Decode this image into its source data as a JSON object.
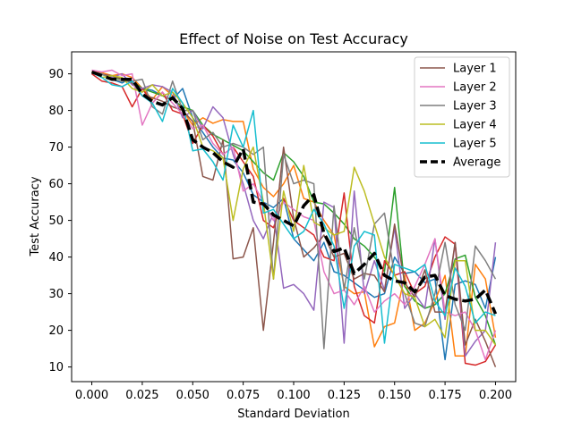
{
  "chart_data": {
    "type": "line",
    "title": "Effect of Noise on Test Accuracy",
    "xlabel": "Standard Deviation",
    "ylabel": "Test Accuracy",
    "xlim": [
      -0.01,
      0.21
    ],
    "ylim": [
      6,
      96
    ],
    "xticks": [
      "0.000",
      "0.025",
      "0.050",
      "0.075",
      "0.100",
      "0.125",
      "0.150",
      "0.175",
      "0.200"
    ],
    "xtick_values": [
      0,
      0.025,
      0.05,
      0.075,
      0.1,
      0.125,
      0.15,
      0.175,
      0.2
    ],
    "yticks": [
      "10",
      "20",
      "30",
      "40",
      "50",
      "60",
      "70",
      "80",
      "90"
    ],
    "ytick_values": [
      10,
      20,
      30,
      40,
      50,
      60,
      70,
      80,
      90
    ],
    "legend_position": "upper right",
    "grid": false,
    "x": [
      0,
      0.005,
      0.01,
      0.015,
      0.02,
      0.025,
      0.03,
      0.035,
      0.04,
      0.045,
      0.05,
      0.055,
      0.06,
      0.065,
      0.07,
      0.075,
      0.08,
      0.085,
      0.09,
      0.095,
      0.1,
      0.105,
      0.11,
      0.115,
      0.12,
      0.125,
      0.13,
      0.135,
      0.14,
      0.145,
      0.15,
      0.155,
      0.16,
      0.165,
      0.17,
      0.175,
      0.18,
      0.185,
      0.19,
      0.195,
      0.2
    ],
    "series": [
      {
        "name": "",
        "color": "#1f77b4",
        "dashed": false,
        "width": 1.5,
        "legend": false,
        "values": [
          90.5,
          90.2,
          88.5,
          87.5,
          89.0,
          86.0,
          85.5,
          84.0,
          83.0,
          86.0,
          78.0,
          74.0,
          70.0,
          67.0,
          66.5,
          63.0,
          57.0,
          55.0,
          53.5,
          56.0,
          45.0,
          42.0,
          39.0,
          44.0,
          36.0,
          35.0,
          33.0,
          31.0,
          29.0,
          30.0,
          40.0,
          35.5,
          36.0,
          33.0,
          34.0,
          12.0,
          32.5,
          33.5,
          32.5,
          26.0,
          40.0
        ]
      },
      {
        "name": "",
        "color": "#ff7f0e",
        "dashed": false,
        "width": 1.5,
        "legend": false,
        "values": [
          90.7,
          90.3,
          89.5,
          90.0,
          89.0,
          86.0,
          83.0,
          86.5,
          84.0,
          80.0,
          76.0,
          78.0,
          76.5,
          77.5,
          77.0,
          77.0,
          64.0,
          59.0,
          56.5,
          60.0,
          65.0,
          56.0,
          55.0,
          50.0,
          46.0,
          32.0,
          30.0,
          30.5,
          15.5,
          21.0,
          22.0,
          35.0,
          20.0,
          22.0,
          28.0,
          35.0,
          13.0,
          13.0,
          38.0,
          34.0,
          18.0
        ]
      },
      {
        "name": "",
        "color": "#2ca02c",
        "dashed": false,
        "width": 1.5,
        "legend": false,
        "values": [
          90.5,
          89.8,
          89.0,
          88.5,
          88.0,
          86.0,
          85.0,
          84.0,
          83.0,
          81.0,
          80.0,
          76.0,
          73.5,
          72.0,
          70.5,
          69.0,
          66.0,
          63.0,
          61.0,
          68.5,
          66.0,
          62.0,
          55.0,
          54.5,
          52.0,
          49.0,
          45.0,
          43.0,
          40.0,
          36.0,
          59.0,
          32.0,
          28.0,
          26.0,
          27.0,
          30.0,
          39.5,
          40.5,
          29.0,
          24.0,
          16.0
        ]
      },
      {
        "name": "",
        "color": "#d62728",
        "dashed": false,
        "width": 1.5,
        "legend": false,
        "values": [
          90.0,
          88.0,
          87.5,
          86.5,
          81.0,
          86.0,
          82.0,
          85.0,
          80.0,
          79.0,
          71.0,
          76.0,
          73.0,
          68.0,
          70.0,
          66.0,
          62.0,
          50.0,
          48.0,
          56.0,
          50.0,
          48.0,
          46.0,
          40.0,
          39.0,
          57.5,
          32.0,
          24.0,
          22.0,
          39.0,
          35.0,
          36.0,
          30.0,
          32.0,
          40.0,
          45.5,
          43.5,
          11.0,
          10.5,
          11.5,
          16.0
        ]
      },
      {
        "name": "",
        "color": "#9467bd",
        "dashed": false,
        "width": 1.5,
        "legend": false,
        "values": [
          90.5,
          90.0,
          89.0,
          90.0,
          87.0,
          86.0,
          87.0,
          86.5,
          85.0,
          78.0,
          80.0,
          75.0,
          81.0,
          78.0,
          68.0,
          60.0,
          50.0,
          45.0,
          52.0,
          31.5,
          32.5,
          30.0,
          25.5,
          55.0,
          53.5,
          16.5,
          58.0,
          30.0,
          39.0,
          31.0,
          48.0,
          26.0,
          30.0,
          26.0,
          45.0,
          23.0,
          44.0,
          13.0,
          17.0,
          20.0,
          44.0
        ]
      },
      {
        "name": "Layer 1",
        "color": "#8c564b",
        "dashed": false,
        "width": 1.5,
        "legend": true,
        "values": [
          90.3,
          89.8,
          89.5,
          88.5,
          87.5,
          84.0,
          83.5,
          82.5,
          81.0,
          80.0,
          77.0,
          62.0,
          61.0,
          72.0,
          39.5,
          40.0,
          48.0,
          20.0,
          44.0,
          70.0,
          50.5,
          40.0,
          42.5,
          46.0,
          40.0,
          41.0,
          34.0,
          35.5,
          35.0,
          30.5,
          49.0,
          33.0,
          29.0,
          36.5,
          25.0,
          25.0,
          44.0,
          16.0,
          23.0,
          17.0,
          10.0
        ]
      },
      {
        "name": "Layer 2",
        "color": "#e377c2",
        "dashed": false,
        "width": 1.5,
        "legend": true,
        "values": [
          91.0,
          90.5,
          91.0,
          89.5,
          90.0,
          76.0,
          82.0,
          85.0,
          82.0,
          79.0,
          75.0,
          76.0,
          71.0,
          68.0,
          70.0,
          58.0,
          60.0,
          55.0,
          50.0,
          55.0,
          53.0,
          51.0,
          50.0,
          36.0,
          30.0,
          31.0,
          27.0,
          32.0,
          25.0,
          28.0,
          30.0,
          27.0,
          32.0,
          38.0,
          45.0,
          25.0,
          24.0,
          25.0,
          20.0,
          12.0,
          20.0
        ]
      },
      {
        "name": "Layer 3",
        "color": "#7f7f7f",
        "dashed": false,
        "width": 1.5,
        "legend": true,
        "values": [
          90.4,
          90.0,
          88.5,
          88.0,
          88.0,
          88.5,
          81.0,
          79.0,
          88.0,
          80.0,
          80.0,
          72.0,
          74.0,
          70.0,
          71.0,
          70.0,
          68.0,
          70.0,
          34.0,
          68.0,
          60.0,
          61.0,
          60.0,
          15.0,
          54.0,
          31.0,
          48.0,
          34.0,
          49.0,
          52.0,
          35.0,
          30.0,
          22.0,
          21.0,
          30.0,
          44.0,
          27.0,
          20.0,
          43.0,
          39.0,
          34.0
        ]
      },
      {
        "name": "Layer 4",
        "color": "#bcbd22",
        "dashed": false,
        "width": 1.5,
        "legend": true,
        "values": [
          90.6,
          89.0,
          89.5,
          89.0,
          86.0,
          85.0,
          87.0,
          84.0,
          85.0,
          82.0,
          78.0,
          70.0,
          69.0,
          67.0,
          50.0,
          64.0,
          70.0,
          55.0,
          34.0,
          58.0,
          47.0,
          65.0,
          49.5,
          48.0,
          46.0,
          47.0,
          64.5,
          58.0,
          49.0,
          40.0,
          35.0,
          30.0,
          29.0,
          21.0,
          23.0,
          18.0,
          39.0,
          39.0,
          20.0,
          20.0,
          16.0
        ]
      },
      {
        "name": "Layer 5",
        "color": "#17becf",
        "dashed": false,
        "width": 1.5,
        "legend": true,
        "values": [
          90.3,
          89.0,
          87.0,
          86.5,
          88.0,
          84.0,
          82.0,
          77.0,
          86.0,
          82.0,
          69.0,
          69.5,
          66.0,
          61.0,
          76.0,
          70.0,
          80.0,
          52.0,
          53.0,
          49.0,
          45.0,
          47.0,
          53.0,
          49.0,
          43.0,
          26.0,
          43.0,
          47.0,
          46.0,
          16.5,
          38.0,
          37.0,
          36.0,
          38.0,
          28.0,
          24.0,
          37.0,
          32.0,
          22.0,
          25.0,
          24.0
        ]
      },
      {
        "name": "Average",
        "color": "#000000",
        "dashed": true,
        "width": 3.5,
        "legend": true,
        "values": [
          90.5,
          89.5,
          88.5,
          88.5,
          88.5,
          84.5,
          82.5,
          81.5,
          83.5,
          80.5,
          72.0,
          70.0,
          68.5,
          66.0,
          64.5,
          69.5,
          55.0,
          54.5,
          51.5,
          50.0,
          48.5,
          54.0,
          57.0,
          46.5,
          41.5,
          42.5,
          35.5,
          38.0,
          41.0,
          35.0,
          33.5,
          33.0,
          30.5,
          34.5,
          35.0,
          29.5,
          28.5,
          28.0,
          28.5,
          31.0,
          24.5
        ]
      }
    ]
  }
}
